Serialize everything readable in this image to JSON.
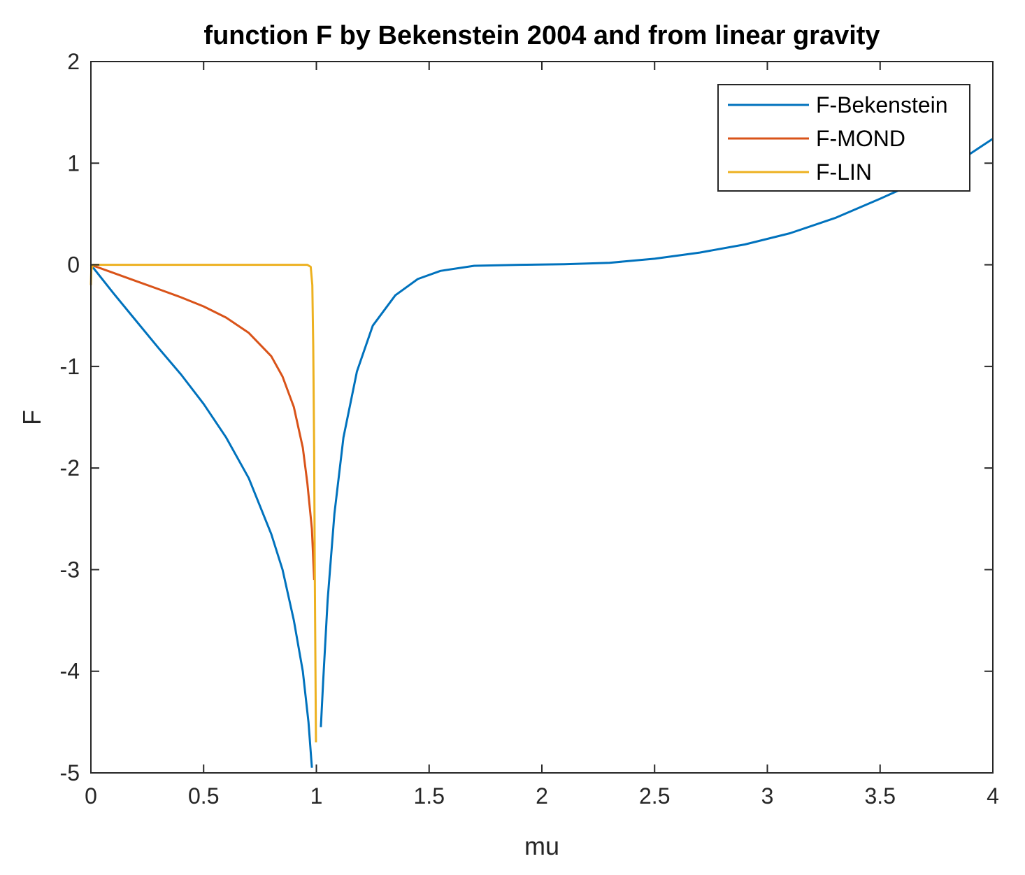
{
  "chart_data": {
    "type": "line",
    "title": "function F by Bekenstein 2004 and from linear gravity",
    "xlabel": "mu",
    "ylabel": "F",
    "xlim": [
      0,
      4
    ],
    "ylim": [
      -5,
      2
    ],
    "xticks": [
      0,
      0.5,
      1,
      1.5,
      2,
      2.5,
      3,
      3.5,
      4
    ],
    "xtick_labels": [
      "0",
      "0.5",
      "1",
      "1.5",
      "2",
      "2.5",
      "3",
      "3.5",
      "4"
    ],
    "yticks": [
      -5,
      -4,
      -3,
      -2,
      -1,
      0,
      1,
      2
    ],
    "ytick_labels": [
      "-5",
      "-4",
      "-3",
      "-2",
      "-1",
      "0",
      "1",
      "2"
    ],
    "grid": false,
    "legend_position": "top-right",
    "series": [
      {
        "name": "F-Bekenstein",
        "color": "#0072BD",
        "segments": [
          [
            [
              0,
              0
            ],
            [
              0.1,
              -0.28
            ],
            [
              0.2,
              -0.55
            ],
            [
              0.3,
              -0.82
            ],
            [
              0.4,
              -1.08
            ],
            [
              0.5,
              -1.37
            ],
            [
              0.6,
              -1.7
            ],
            [
              0.7,
              -2.1
            ],
            [
              0.8,
              -2.65
            ],
            [
              0.85,
              -3.0
            ],
            [
              0.9,
              -3.5
            ],
            [
              0.94,
              -4.0
            ],
            [
              0.965,
              -4.5
            ],
            [
              0.98,
              -4.95
            ]
          ],
          [
            [
              1.02,
              -4.55
            ],
            [
              1.03,
              -4.1
            ],
            [
              1.05,
              -3.3
            ],
            [
              1.08,
              -2.45
            ],
            [
              1.12,
              -1.7
            ],
            [
              1.18,
              -1.05
            ],
            [
              1.25,
              -0.6
            ],
            [
              1.35,
              -0.3
            ],
            [
              1.45,
              -0.14
            ],
            [
              1.55,
              -0.06
            ],
            [
              1.7,
              -0.01
            ],
            [
              1.9,
              0.0
            ],
            [
              2.1,
              0.005
            ],
            [
              2.3,
              0.02
            ],
            [
              2.5,
              0.06
            ],
            [
              2.7,
              0.12
            ],
            [
              2.9,
              0.2
            ],
            [
              3.1,
              0.31
            ],
            [
              3.3,
              0.46
            ],
            [
              3.5,
              0.65
            ],
            [
              3.7,
              0.85
            ],
            [
              3.85,
              1.02
            ],
            [
              4.0,
              1.24
            ]
          ]
        ]
      },
      {
        "name": "F-MOND",
        "color": "#D95319",
        "segments": [
          [
            [
              0,
              0
            ],
            [
              0.1,
              -0.08
            ],
            [
              0.2,
              -0.16
            ],
            [
              0.3,
              -0.24
            ],
            [
              0.4,
              -0.32
            ],
            [
              0.5,
              -0.41
            ],
            [
              0.6,
              -0.52
            ],
            [
              0.7,
              -0.67
            ],
            [
              0.8,
              -0.9
            ],
            [
              0.85,
              -1.1
            ],
            [
              0.9,
              -1.4
            ],
            [
              0.94,
              -1.8
            ],
            [
              0.96,
              -2.15
            ],
            [
              0.98,
              -2.6
            ],
            [
              0.99,
              -3.1
            ]
          ]
        ]
      },
      {
        "name": "F-LIN",
        "color": "#EDB120",
        "segments": [
          [
            [
              0,
              -0.2
            ],
            [
              0.002,
              -0.05
            ],
            [
              0.01,
              0
            ],
            [
              0.5,
              0
            ],
            [
              0.9,
              0
            ],
            [
              0.96,
              0
            ],
            [
              0.975,
              -0.02
            ],
            [
              0.982,
              -0.2
            ],
            [
              0.986,
              -0.8
            ],
            [
              0.99,
              -1.8
            ],
            [
              0.993,
              -3.0
            ],
            [
              0.996,
              -4.0
            ],
            [
              0.998,
              -4.7
            ]
          ]
        ]
      }
    ]
  }
}
